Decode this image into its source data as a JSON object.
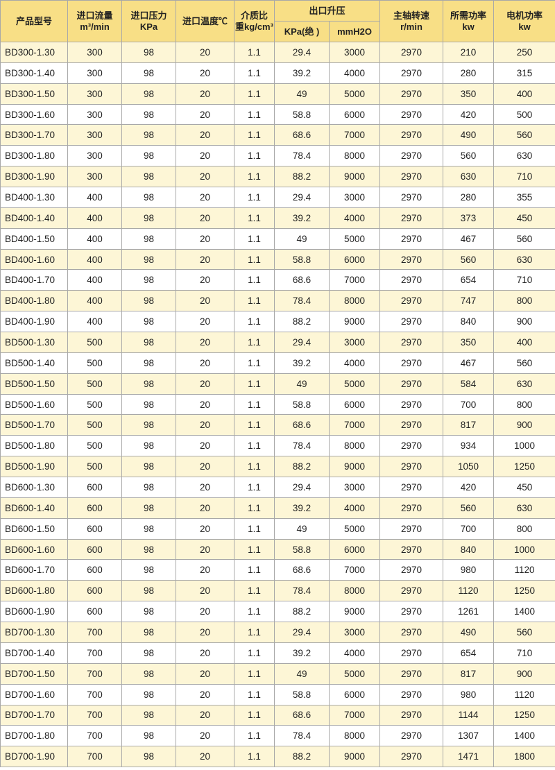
{
  "headers": {
    "model": "产品型号",
    "flow": [
      "进口流量",
      "m³/min"
    ],
    "inlet_pressure": [
      "进口压力",
      "KPa"
    ],
    "inlet_temp": "进口温度℃",
    "density": [
      "介质比",
      "重kg/cm³"
    ],
    "outlet_boost": "出口升压",
    "outlet_kpa": "KPa(绝 )",
    "outlet_mmh2o": "mmH2O",
    "speed": [
      "主轴转速",
      "r/min"
    ],
    "required_power": [
      "所需功率",
      "kw"
    ],
    "motor_power": [
      "电机功率",
      "kw"
    ]
  },
  "rows": [
    [
      "BD300-1.30",
      "300",
      "98",
      "20",
      "1.1",
      "29.4",
      "3000",
      "2970",
      "210",
      "250"
    ],
    [
      "BD300-1.40",
      "300",
      "98",
      "20",
      "1.1",
      "39.2",
      "4000",
      "2970",
      "280",
      "315"
    ],
    [
      "BD300-1.50",
      "300",
      "98",
      "20",
      "1.1",
      "49",
      "5000",
      "2970",
      "350",
      "400"
    ],
    [
      "BD300-1.60",
      "300",
      "98",
      "20",
      "1.1",
      "58.8",
      "6000",
      "2970",
      "420",
      "500"
    ],
    [
      "BD300-1.70",
      "300",
      "98",
      "20",
      "1.1",
      "68.6",
      "7000",
      "2970",
      "490",
      "560"
    ],
    [
      "BD300-1.80",
      "300",
      "98",
      "20",
      "1.1",
      "78.4",
      "8000",
      "2970",
      "560",
      "630"
    ],
    [
      "BD300-1.90",
      "300",
      "98",
      "20",
      "1.1",
      "88.2",
      "9000",
      "2970",
      "630",
      "710"
    ],
    [
      "BD400-1.30",
      "400",
      "98",
      "20",
      "1.1",
      "29.4",
      "3000",
      "2970",
      "280",
      "355"
    ],
    [
      "BD400-1.40",
      "400",
      "98",
      "20",
      "1.1",
      "39.2",
      "4000",
      "2970",
      "373",
      "450"
    ],
    [
      "BD400-1.50",
      "400",
      "98",
      "20",
      "1.1",
      "49",
      "5000",
      "2970",
      "467",
      "560"
    ],
    [
      "BD400-1.60",
      "400",
      "98",
      "20",
      "1.1",
      "58.8",
      "6000",
      "2970",
      "560",
      "630"
    ],
    [
      "BD400-1.70",
      "400",
      "98",
      "20",
      "1.1",
      "68.6",
      "7000",
      "2970",
      "654",
      "710"
    ],
    [
      "BD400-1.80",
      "400",
      "98",
      "20",
      "1.1",
      "78.4",
      "8000",
      "2970",
      "747",
      "800"
    ],
    [
      "BD400-1.90",
      "400",
      "98",
      "20",
      "1.1",
      "88.2",
      "9000",
      "2970",
      "840",
      "900"
    ],
    [
      "BD500-1.30",
      "500",
      "98",
      "20",
      "1.1",
      "29.4",
      "3000",
      "2970",
      "350",
      "400"
    ],
    [
      "BD500-1.40",
      "500",
      "98",
      "20",
      "1.1",
      "39.2",
      "4000",
      "2970",
      "467",
      "560"
    ],
    [
      "BD500-1.50",
      "500",
      "98",
      "20",
      "1.1",
      "49",
      "5000",
      "2970",
      "584",
      "630"
    ],
    [
      "BD500-1.60",
      "500",
      "98",
      "20",
      "1.1",
      "58.8",
      "6000",
      "2970",
      "700",
      "800"
    ],
    [
      "BD500-1.70",
      "500",
      "98",
      "20",
      "1.1",
      "68.6",
      "7000",
      "2970",
      "817",
      "900"
    ],
    [
      "BD500-1.80",
      "500",
      "98",
      "20",
      "1.1",
      "78.4",
      "8000",
      "2970",
      "934",
      "1000"
    ],
    [
      "BD500-1.90",
      "500",
      "98",
      "20",
      "1.1",
      "88.2",
      "9000",
      "2970",
      "1050",
      "1250"
    ],
    [
      "BD600-1.30",
      "600",
      "98",
      "20",
      "1.1",
      "29.4",
      "3000",
      "2970",
      "420",
      "450"
    ],
    [
      "BD600-1.40",
      "600",
      "98",
      "20",
      "1.1",
      "39.2",
      "4000",
      "2970",
      "560",
      "630"
    ],
    [
      "BD600-1.50",
      "600",
      "98",
      "20",
      "1.1",
      "49",
      "5000",
      "2970",
      "700",
      "800"
    ],
    [
      "BD600-1.60",
      "600",
      "98",
      "20",
      "1.1",
      "58.8",
      "6000",
      "2970",
      "840",
      "1000"
    ],
    [
      "BD600-1.70",
      "600",
      "98",
      "20",
      "1.1",
      "68.6",
      "7000",
      "2970",
      "980",
      "1120"
    ],
    [
      "BD600-1.80",
      "600",
      "98",
      "20",
      "1.1",
      "78.4",
      "8000",
      "2970",
      "1120",
      "1250"
    ],
    [
      "BD600-1.90",
      "600",
      "98",
      "20",
      "1.1",
      "88.2",
      "9000",
      "2970",
      "1261",
      "1400"
    ],
    [
      "BD700-1.30",
      "700",
      "98",
      "20",
      "1.1",
      "29.4",
      "3000",
      "2970",
      "490",
      "560"
    ],
    [
      "BD700-1.40",
      "700",
      "98",
      "20",
      "1.1",
      "39.2",
      "4000",
      "2970",
      "654",
      "710"
    ],
    [
      "BD700-1.50",
      "700",
      "98",
      "20",
      "1.1",
      "49",
      "5000",
      "2970",
      "817",
      "900"
    ],
    [
      "BD700-1.60",
      "700",
      "98",
      "20",
      "1.1",
      "58.8",
      "6000",
      "2970",
      "980",
      "1120"
    ],
    [
      "BD700-1.70",
      "700",
      "98",
      "20",
      "1.1",
      "68.6",
      "7000",
      "2970",
      "1144",
      "1250"
    ],
    [
      "BD700-1.80",
      "700",
      "98",
      "20",
      "1.1",
      "78.4",
      "8000",
      "2970",
      "1307",
      "1400"
    ],
    [
      "BD700-1.90",
      "700",
      "98",
      "20",
      "1.1",
      "88.2",
      "9000",
      "2970",
      "1471",
      "1800"
    ]
  ],
  "colors": {
    "header_bg": "#f8df86",
    "odd_row_bg": "#fdf6d6",
    "even_row_bg": "#ffffff",
    "border": "#a8a8a8"
  }
}
